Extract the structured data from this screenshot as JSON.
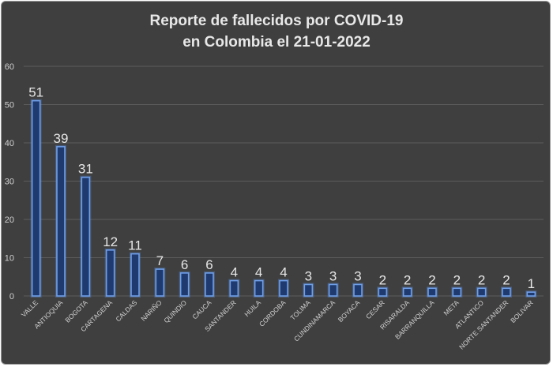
{
  "chart_data": {
    "type": "bar",
    "title_line1": "Reporte de fallecidos por COVID-19",
    "title_line2": "en Colombia el 21-01-2022",
    "xlabel": "",
    "ylabel": "",
    "ylim": [
      0,
      60
    ],
    "yticks": [
      0,
      10,
      20,
      30,
      40,
      50,
      60
    ],
    "grid": true,
    "legend": "none",
    "categories": [
      "VALLE",
      "ANTIOQUIA",
      "BOGOTA",
      "CARTAGENA",
      "CALDAS",
      "NARIÑO",
      "QUINDIO",
      "CAUCA",
      "SANTANDER",
      "HUILA",
      "CORDOBA",
      "TOLIMA",
      "CUNDINAMARCA",
      "BOYACA",
      "CESAR",
      "RISARALDA",
      "BARRANQUILLA",
      "META",
      "ATLANTICO",
      "NORTE SANTANDER",
      "BOLIVAR"
    ],
    "values": [
      51,
      39,
      31,
      12,
      11,
      7,
      6,
      6,
      4,
      4,
      4,
      3,
      3,
      3,
      2,
      2,
      2,
      2,
      2,
      2,
      1
    ]
  },
  "colors": {
    "background": "#3f3f3f",
    "bar_fill": "#1f3a6e",
    "bar_edge": "#6f9ee8",
    "text": "#e8e8e8",
    "grid": "#5c5c5c"
  }
}
